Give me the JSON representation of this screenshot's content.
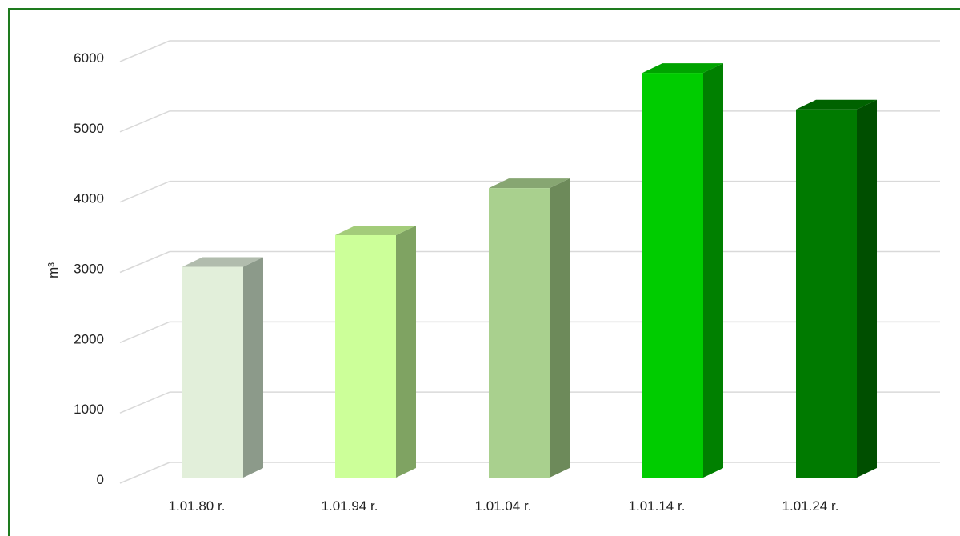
{
  "chart_data": {
    "type": "bar",
    "categories": [
      "1.01.80 r.",
      "1.01.94 r.",
      "1.01.04 r.",
      "1.01.14 r.",
      "1.01.24 r."
    ],
    "values": [
      3000,
      3450,
      4120,
      5760,
      5240
    ],
    "ylabel": "m³",
    "ylim": [
      0,
      6000
    ],
    "yticks": [
      0,
      1000,
      2000,
      3000,
      4000,
      5000,
      6000
    ],
    "grid": true,
    "legend": "none",
    "colors": {
      "front": [
        "#e2efda",
        "#ccff99",
        "#a9d08e",
        "#00cc00",
        "#007a00"
      ],
      "side": [
        "#8c9a8a",
        "#7fa362",
        "#6d8a5a",
        "#008000",
        "#004f00"
      ],
      "top": [
        "#b1bcad",
        "#a3cc7a",
        "#87a672",
        "#00a300",
        "#006200"
      ],
      "frame": "#1e7b1e",
      "grid": "#d9d9d9"
    }
  }
}
